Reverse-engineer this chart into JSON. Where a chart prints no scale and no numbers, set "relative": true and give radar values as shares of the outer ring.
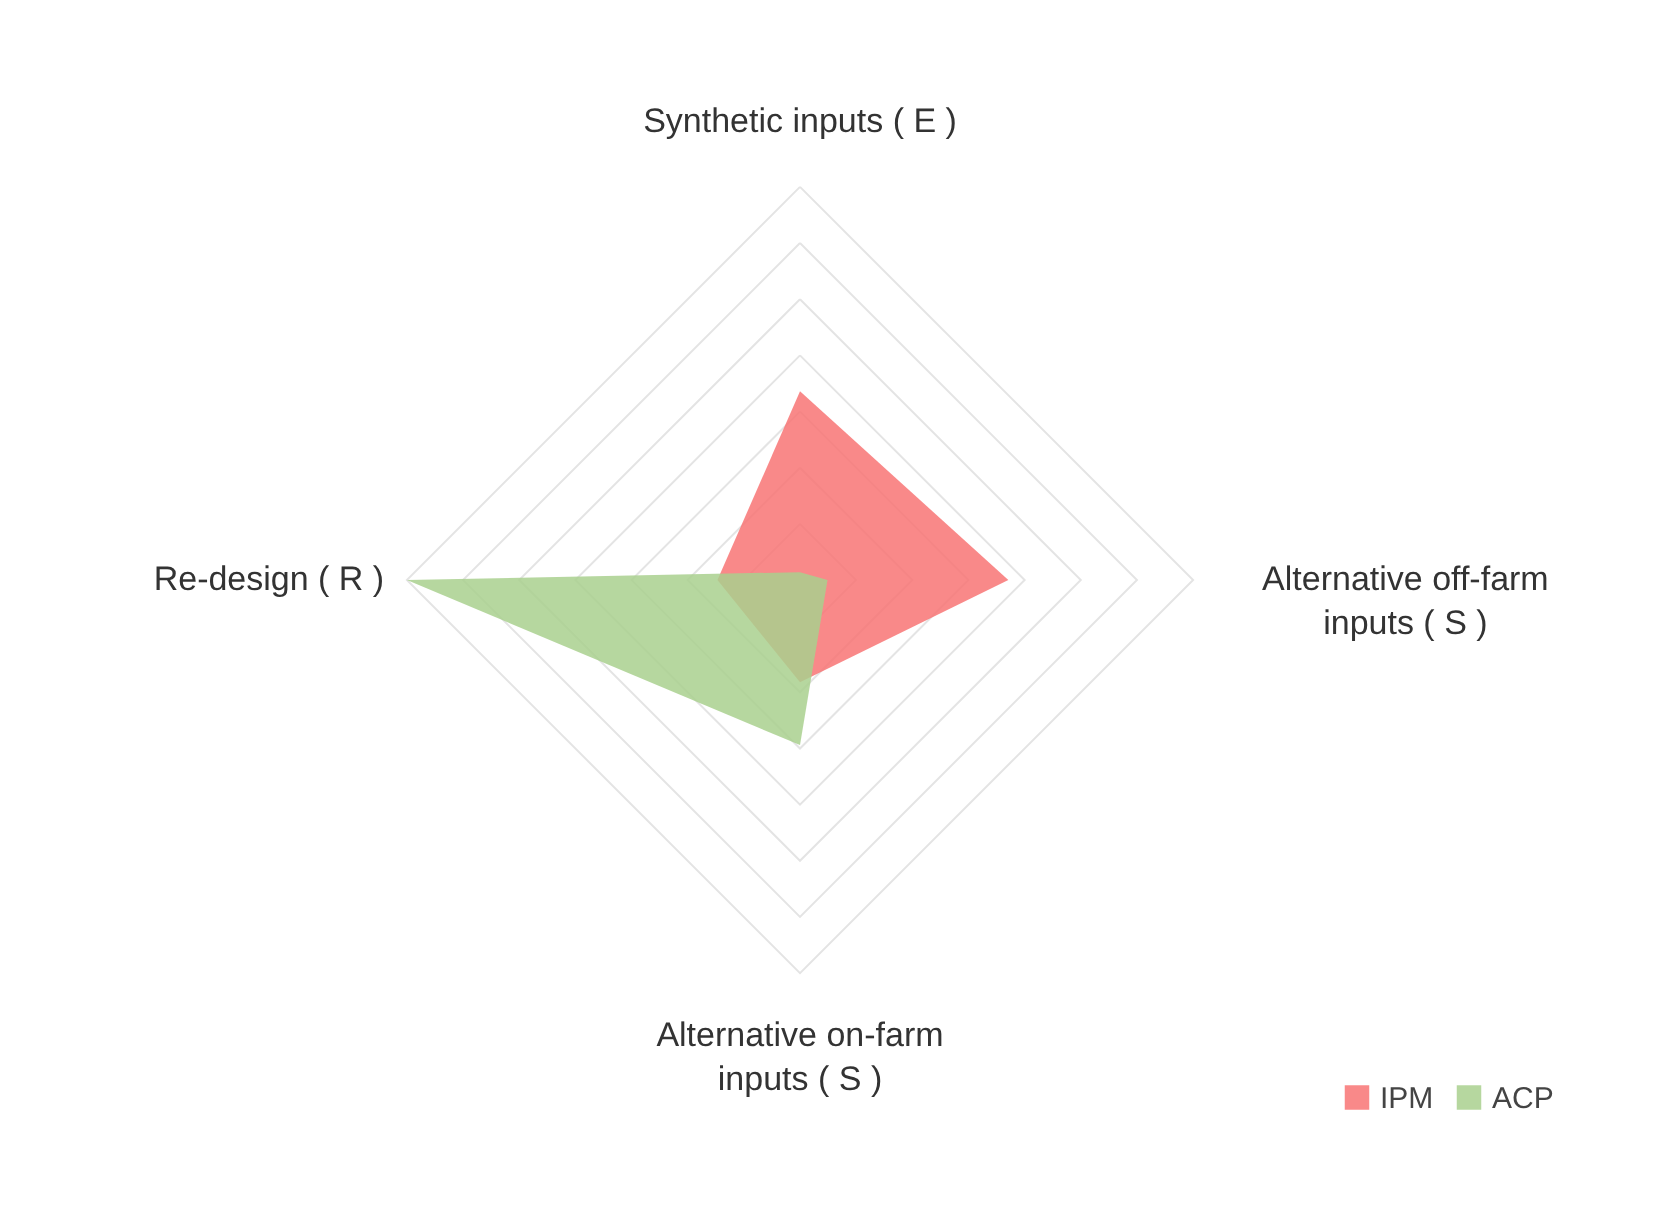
{
  "chart_data": {
    "type": "radar",
    "relative": true,
    "grid": true,
    "legend": "bottom right",
    "categories": [
      "Synthetic inputs ( E )",
      "Alternative off-farm inputs ( S )",
      "Alternative on-farm inputs ( S )",
      "Re-design ( R )"
    ],
    "series": [
      {
        "name": "IPM",
        "color": "#f87474",
        "values": [
          0.48,
          0.53,
          0.26,
          0.21
        ]
      },
      {
        "name": "ACP",
        "color": "#a9d08e",
        "values": [
          0.02,
          0.07,
          0.42,
          1.0
        ]
      }
    ]
  }
}
